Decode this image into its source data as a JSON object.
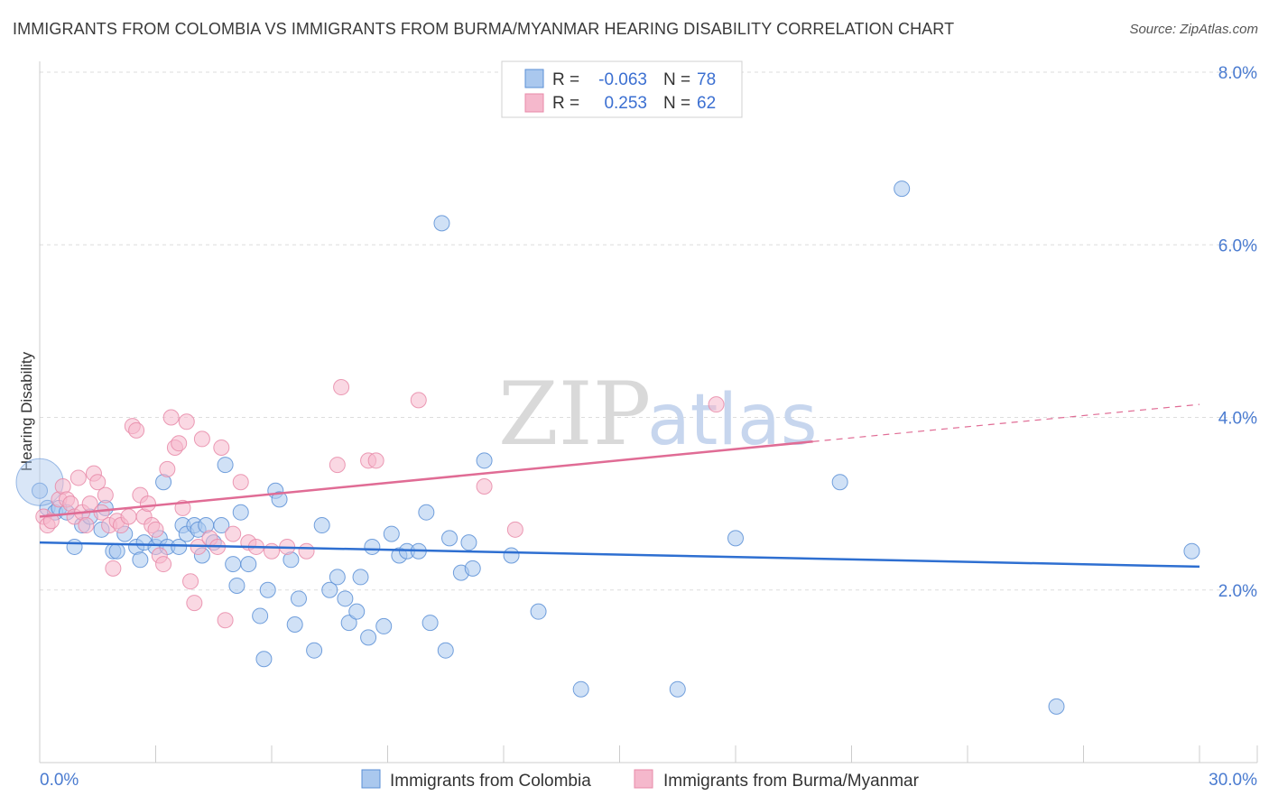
{
  "title": "IMMIGRANTS FROM COLOMBIA VS IMMIGRANTS FROM BURMA/MYANMAR HEARING DISABILITY CORRELATION CHART",
  "source": "Source: ZipAtlas.com",
  "watermark": {
    "part1": "ZIP",
    "part2": "atlas"
  },
  "colors": {
    "colombia_fill": "#aac8ee",
    "colombia_stroke": "#5b8fd6",
    "colombia_line": "#2e6fd1",
    "burma_fill": "#f5b8cc",
    "burma_stroke": "#e88aa8",
    "burma_line": "#e06c95",
    "grid": "#dddddd",
    "tick_label": "#4a7bd0"
  },
  "legend": {
    "rows": [
      {
        "r_label": "R =",
        "r_value": "-0.063",
        "n_label": "N =",
        "n_value": "78"
      },
      {
        "r_label": "R =",
        "r_value": "0.253",
        "n_label": "N =",
        "n_value": "62"
      }
    ]
  },
  "chart_data": {
    "type": "scatter",
    "title": "IMMIGRANTS FROM COLOMBIA VS IMMIGRANTS FROM BURMA/MYANMAR HEARING DISABILITY CORRELATION CHART",
    "xlabel": "",
    "ylabel": "Hearing Disability",
    "xlim": [
      0,
      30
    ],
    "ylim": [
      0,
      8.3
    ],
    "x_tick_labels": [
      "0.0%",
      "30.0%"
    ],
    "y_ticks": [
      2,
      4,
      6,
      8
    ],
    "y_tick_labels": [
      "2.0%",
      "4.0%",
      "6.0%",
      "8.0%"
    ],
    "grid": true,
    "legend_position": "bottom",
    "series": [
      {
        "name": "Immigrants from Colombia",
        "r": -0.063,
        "n": 78,
        "trend": {
          "x0": 0,
          "y0": 2.55,
          "x1": 30,
          "y1": 2.27
        },
        "points": [
          [
            0.0,
            3.15
          ],
          [
            0.2,
            2.95
          ],
          [
            0.4,
            2.9
          ],
          [
            0.5,
            2.95
          ],
          [
            0.7,
            2.9
          ],
          [
            0.9,
            2.5
          ],
          [
            1.1,
            2.75
          ],
          [
            1.3,
            2.85
          ],
          [
            1.6,
            2.7
          ],
          [
            1.7,
            2.95
          ],
          [
            1.9,
            2.45
          ],
          [
            2.0,
            2.45
          ],
          [
            2.2,
            2.65
          ],
          [
            2.5,
            2.5
          ],
          [
            2.6,
            2.35
          ],
          [
            2.7,
            2.55
          ],
          [
            3.0,
            2.5
          ],
          [
            3.1,
            2.6
          ],
          [
            3.2,
            3.25
          ],
          [
            3.3,
            2.5
          ],
          [
            3.6,
            2.5
          ],
          [
            3.7,
            2.75
          ],
          [
            3.8,
            2.65
          ],
          [
            4.0,
            2.75
          ],
          [
            4.1,
            2.7
          ],
          [
            4.2,
            2.4
          ],
          [
            4.3,
            2.75
          ],
          [
            4.5,
            2.55
          ],
          [
            4.7,
            2.75
          ],
          [
            4.8,
            3.45
          ],
          [
            5.0,
            2.3
          ],
          [
            5.1,
            2.05
          ],
          [
            5.2,
            2.9
          ],
          [
            5.4,
            2.3
          ],
          [
            5.7,
            1.7
          ],
          [
            5.8,
            1.2
          ],
          [
            5.9,
            2.0
          ],
          [
            6.1,
            3.15
          ],
          [
            6.2,
            3.05
          ],
          [
            6.5,
            2.35
          ],
          [
            6.6,
            1.6
          ],
          [
            6.7,
            1.9
          ],
          [
            7.1,
            1.3
          ],
          [
            7.3,
            2.75
          ],
          [
            7.5,
            2.0
          ],
          [
            7.7,
            2.15
          ],
          [
            7.9,
            1.9
          ],
          [
            8.0,
            1.62
          ],
          [
            8.2,
            1.75
          ],
          [
            8.3,
            2.15
          ],
          [
            8.5,
            1.45
          ],
          [
            8.6,
            2.5
          ],
          [
            8.9,
            1.58
          ],
          [
            9.1,
            2.65
          ],
          [
            9.3,
            2.4
          ],
          [
            9.5,
            2.45
          ],
          [
            9.8,
            2.45
          ],
          [
            10.0,
            2.9
          ],
          [
            10.1,
            1.62
          ],
          [
            10.4,
            6.25
          ],
          [
            10.5,
            1.3
          ],
          [
            10.6,
            2.6
          ],
          [
            10.9,
            2.2
          ],
          [
            11.1,
            2.55
          ],
          [
            11.2,
            2.25
          ],
          [
            11.5,
            3.5
          ],
          [
            12.2,
            2.4
          ],
          [
            12.9,
            1.75
          ],
          [
            14.0,
            0.85
          ],
          [
            16.5,
            0.85
          ],
          [
            18.0,
            2.6
          ],
          [
            20.7,
            3.25
          ],
          [
            22.3,
            6.65
          ],
          [
            26.3,
            0.65
          ],
          [
            29.8,
            2.45
          ]
        ]
      },
      {
        "name": "Immigrants from Burma/Myanmar",
        "r": 0.253,
        "n": 62,
        "trend": {
          "x0": 0,
          "y0": 2.85,
          "x1": 20,
          "y1": 3.72,
          "x_end": 30,
          "y_end": 4.15
        },
        "points": [
          [
            0.1,
            2.85
          ],
          [
            0.2,
            2.75
          ],
          [
            0.3,
            2.8
          ],
          [
            0.5,
            3.05
          ],
          [
            0.6,
            3.2
          ],
          [
            0.7,
            3.05
          ],
          [
            0.8,
            3.0
          ],
          [
            0.9,
            2.85
          ],
          [
            1.0,
            3.3
          ],
          [
            1.1,
            2.9
          ],
          [
            1.2,
            2.75
          ],
          [
            1.3,
            3.0
          ],
          [
            1.4,
            3.35
          ],
          [
            1.5,
            3.25
          ],
          [
            1.6,
            2.9
          ],
          [
            1.7,
            3.1
          ],
          [
            1.8,
            2.75
          ],
          [
            1.9,
            2.25
          ],
          [
            2.0,
            2.8
          ],
          [
            2.1,
            2.75
          ],
          [
            2.3,
            2.85
          ],
          [
            2.4,
            3.9
          ],
          [
            2.5,
            3.85
          ],
          [
            2.6,
            3.1
          ],
          [
            2.7,
            2.85
          ],
          [
            2.8,
            3.0
          ],
          [
            2.9,
            2.75
          ],
          [
            3.0,
            2.7
          ],
          [
            3.1,
            2.4
          ],
          [
            3.2,
            2.3
          ],
          [
            3.3,
            3.4
          ],
          [
            3.4,
            4.0
          ],
          [
            3.5,
            3.65
          ],
          [
            3.6,
            3.7
          ],
          [
            3.7,
            2.95
          ],
          [
            3.8,
            3.95
          ],
          [
            3.9,
            2.1
          ],
          [
            4.0,
            1.85
          ],
          [
            4.1,
            2.5
          ],
          [
            4.2,
            3.75
          ],
          [
            4.4,
            2.6
          ],
          [
            4.6,
            2.5
          ],
          [
            4.7,
            3.65
          ],
          [
            4.8,
            1.65
          ],
          [
            5.0,
            2.65
          ],
          [
            5.2,
            3.25
          ],
          [
            5.4,
            2.55
          ],
          [
            5.6,
            2.5
          ],
          [
            6.0,
            2.45
          ],
          [
            6.4,
            2.5
          ],
          [
            6.9,
            2.45
          ],
          [
            7.7,
            3.45
          ],
          [
            7.8,
            4.35
          ],
          [
            8.5,
            3.5
          ],
          [
            8.7,
            3.5
          ],
          [
            9.8,
            4.2
          ],
          [
            11.5,
            3.2
          ],
          [
            12.3,
            2.7
          ],
          [
            17.5,
            4.15
          ]
        ]
      }
    ]
  }
}
